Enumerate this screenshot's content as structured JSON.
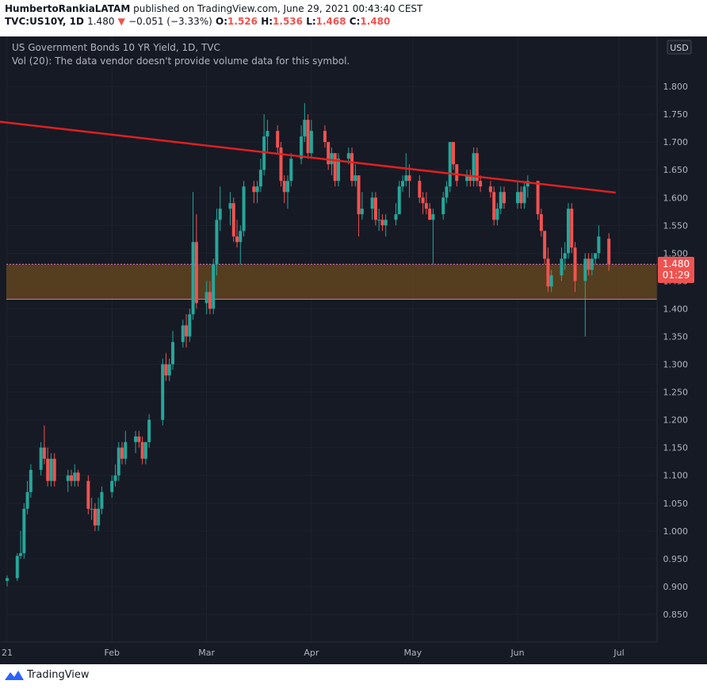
{
  "header": {
    "author": "HumbertoRankiaLATAM",
    "published": "published on TradingView.com, June 29, 2021 00:43:40 CEST",
    "symbol": "TVC:US10Y, 1D",
    "last": "1.480",
    "change": "−0.051 (−3.33%)",
    "o_label": "O:",
    "o_val": "1.526",
    "h_label": "H:",
    "h_val": "1.536",
    "l_label": "L:",
    "l_val": "1.468",
    "c_label": "C:",
    "c_val": "1.480"
  },
  "legend": {
    "title": "US Government Bonds 10 YR Yield, 1D, TVC",
    "vol": "Vol (20): The data vendor doesn't provide volume data for this symbol."
  },
  "currency": "USD",
  "price_tag": {
    "price": "1.480",
    "countdown": "01:29"
  },
  "footer": {
    "brand": "TradingView"
  },
  "colors": {
    "up": "#26a69a",
    "down": "#ef5350",
    "background": "#161a25",
    "trendline": "#e02020",
    "zone": "#6b4a1e",
    "text": "#b2b5be"
  },
  "chart_data": {
    "type": "candlestick",
    "title": "US Government Bonds 10 YR Yield, 1D, TVC",
    "ylim": [
      0.8,
      1.89
    ],
    "y_ticks": [
      "0.850",
      "0.900",
      "0.950",
      "1.000",
      "1.050",
      "1.100",
      "1.150",
      "1.200",
      "1.250",
      "1.300",
      "1.350",
      "1.400",
      "1.450",
      "1.500",
      "1.550",
      "1.600",
      "1.650",
      "1.700",
      "1.750",
      "1.800"
    ],
    "x_labels": [
      {
        "label": "21",
        "date": "2021-01-01"
      },
      {
        "label": "Feb",
        "date": "2021-02-01"
      },
      {
        "label": "Mar",
        "date": "2021-03-01"
      },
      {
        "label": "Apr",
        "date": "2021-04-01"
      },
      {
        "label": "May",
        "date": "2021-05-01"
      },
      {
        "label": "Jun",
        "date": "2021-06-01"
      },
      {
        "label": "Jul",
        "date": "2021-07-01"
      }
    ],
    "candles": [
      {
        "d": "2021-01-01",
        "o": 0.91,
        "h": 0.92,
        "l": 0.9,
        "c": 0.915
      },
      {
        "d": "2021-01-04",
        "o": 0.915,
        "h": 0.96,
        "l": 0.91,
        "c": 0.955
      },
      {
        "d": "2021-01-05",
        "o": 0.955,
        "h": 1.0,
        "l": 0.95,
        "c": 0.96
      },
      {
        "d": "2021-01-06",
        "o": 0.96,
        "h": 1.05,
        "l": 0.95,
        "c": 1.04
      },
      {
        "d": "2021-01-07",
        "o": 1.04,
        "h": 1.09,
        "l": 1.03,
        "c": 1.07
      },
      {
        "d": "2021-01-08",
        "o": 1.07,
        "h": 1.12,
        "l": 1.06,
        "c": 1.11
      },
      {
        "d": "2021-01-11",
        "o": 1.11,
        "h": 1.16,
        "l": 1.1,
        "c": 1.15
      },
      {
        "d": "2021-01-12",
        "o": 1.15,
        "h": 1.19,
        "l": 1.12,
        "c": 1.13
      },
      {
        "d": "2021-01-13",
        "o": 1.13,
        "h": 1.15,
        "l": 1.08,
        "c": 1.09
      },
      {
        "d": "2021-01-14",
        "o": 1.09,
        "h": 1.14,
        "l": 1.08,
        "c": 1.13
      },
      {
        "d": "2021-01-15",
        "o": 1.13,
        "h": 1.14,
        "l": 1.08,
        "c": 1.09
      },
      {
        "d": "2021-01-19",
        "o": 1.09,
        "h": 1.11,
        "l": 1.07,
        "c": 1.1
      },
      {
        "d": "2021-01-20",
        "o": 1.1,
        "h": 1.11,
        "l": 1.08,
        "c": 1.09
      },
      {
        "d": "2021-01-21",
        "o": 1.09,
        "h": 1.12,
        "l": 1.08,
        "c": 1.105
      },
      {
        "d": "2021-01-22",
        "o": 1.105,
        "h": 1.11,
        "l": 1.08,
        "c": 1.09
      },
      {
        "d": "2021-01-25",
        "o": 1.09,
        "h": 1.1,
        "l": 1.03,
        "c": 1.04
      },
      {
        "d": "2021-01-26",
        "o": 1.04,
        "h": 1.06,
        "l": 1.02,
        "c": 1.04
      },
      {
        "d": "2021-01-27",
        "o": 1.04,
        "h": 1.05,
        "l": 1.0,
        "c": 1.01
      },
      {
        "d": "2021-01-28",
        "o": 1.01,
        "h": 1.06,
        "l": 1.0,
        "c": 1.04
      },
      {
        "d": "2021-01-29",
        "o": 1.04,
        "h": 1.08,
        "l": 1.03,
        "c": 1.07
      },
      {
        "d": "2021-02-01",
        "o": 1.07,
        "h": 1.1,
        "l": 1.06,
        "c": 1.09
      },
      {
        "d": "2021-02-02",
        "o": 1.09,
        "h": 1.12,
        "l": 1.08,
        "c": 1.1
      },
      {
        "d": "2021-02-03",
        "o": 1.1,
        "h": 1.16,
        "l": 1.09,
        "c": 1.15
      },
      {
        "d": "2021-02-04",
        "o": 1.15,
        "h": 1.16,
        "l": 1.12,
        "c": 1.13
      },
      {
        "d": "2021-02-05",
        "o": 1.13,
        "h": 1.18,
        "l": 1.12,
        "c": 1.16
      },
      {
        "d": "2021-02-08",
        "o": 1.16,
        "h": 1.18,
        "l": 1.14,
        "c": 1.17
      },
      {
        "d": "2021-02-09",
        "o": 1.17,
        "h": 1.18,
        "l": 1.15,
        "c": 1.16
      },
      {
        "d": "2021-02-10",
        "o": 1.16,
        "h": 1.17,
        "l": 1.12,
        "c": 1.13
      },
      {
        "d": "2021-02-11",
        "o": 1.13,
        "h": 1.16,
        "l": 1.12,
        "c": 1.16
      },
      {
        "d": "2021-02-12",
        "o": 1.16,
        "h": 1.21,
        "l": 1.15,
        "c": 1.2
      },
      {
        "d": "2021-02-16",
        "o": 1.2,
        "h": 1.31,
        "l": 1.19,
        "c": 1.3
      },
      {
        "d": "2021-02-17",
        "o": 1.3,
        "h": 1.32,
        "l": 1.27,
        "c": 1.28
      },
      {
        "d": "2021-02-18",
        "o": 1.28,
        "h": 1.31,
        "l": 1.27,
        "c": 1.3
      },
      {
        "d": "2021-02-19",
        "o": 1.3,
        "h": 1.36,
        "l": 1.29,
        "c": 1.34
      },
      {
        "d": "2021-02-22",
        "o": 1.34,
        "h": 1.38,
        "l": 1.33,
        "c": 1.37
      },
      {
        "d": "2021-02-23",
        "o": 1.37,
        "h": 1.39,
        "l": 1.33,
        "c": 1.35
      },
      {
        "d": "2021-02-24",
        "o": 1.35,
        "h": 1.4,
        "l": 1.34,
        "c": 1.39
      },
      {
        "d": "2021-02-25",
        "o": 1.39,
        "h": 1.61,
        "l": 1.38,
        "c": 1.52
      },
      {
        "d": "2021-02-26",
        "o": 1.52,
        "h": 1.57,
        "l": 1.4,
        "c": 1.41
      },
      {
        "d": "2021-03-01",
        "o": 1.41,
        "h": 1.45,
        "l": 1.39,
        "c": 1.43
      },
      {
        "d": "2021-03-02",
        "o": 1.43,
        "h": 1.45,
        "l": 1.39,
        "c": 1.4
      },
      {
        "d": "2021-03-03",
        "o": 1.4,
        "h": 1.49,
        "l": 1.39,
        "c": 1.48
      },
      {
        "d": "2021-03-04",
        "o": 1.48,
        "h": 1.58,
        "l": 1.46,
        "c": 1.56
      },
      {
        "d": "2021-03-05",
        "o": 1.56,
        "h": 1.62,
        "l": 1.54,
        "c": 1.58
      },
      {
        "d": "2021-03-08",
        "o": 1.58,
        "h": 1.61,
        "l": 1.55,
        "c": 1.59
      },
      {
        "d": "2021-03-09",
        "o": 1.59,
        "h": 1.6,
        "l": 1.52,
        "c": 1.53
      },
      {
        "d": "2021-03-10",
        "o": 1.53,
        "h": 1.56,
        "l": 1.51,
        "c": 1.52
      },
      {
        "d": "2021-03-11",
        "o": 1.52,
        "h": 1.55,
        "l": 1.48,
        "c": 1.54
      },
      {
        "d": "2021-03-12",
        "o": 1.54,
        "h": 1.63,
        "l": 1.53,
        "c": 1.62
      },
      {
        "d": "2021-03-15",
        "o": 1.62,
        "h": 1.63,
        "l": 1.59,
        "c": 1.61
      },
      {
        "d": "2021-03-16",
        "o": 1.61,
        "h": 1.63,
        "l": 1.59,
        "c": 1.62
      },
      {
        "d": "2021-03-17",
        "o": 1.62,
        "h": 1.67,
        "l": 1.61,
        "c": 1.65
      },
      {
        "d": "2021-03-18",
        "o": 1.65,
        "h": 1.75,
        "l": 1.64,
        "c": 1.71
      },
      {
        "d": "2021-03-19",
        "o": 1.71,
        "h": 1.74,
        "l": 1.68,
        "c": 1.72
      },
      {
        "d": "2021-03-22",
        "o": 1.72,
        "h": 1.73,
        "l": 1.68,
        "c": 1.69
      },
      {
        "d": "2021-03-23",
        "o": 1.69,
        "h": 1.7,
        "l": 1.62,
        "c": 1.63
      },
      {
        "d": "2021-03-24",
        "o": 1.63,
        "h": 1.64,
        "l": 1.59,
        "c": 1.61
      },
      {
        "d": "2021-03-25",
        "o": 1.61,
        "h": 1.64,
        "l": 1.58,
        "c": 1.63
      },
      {
        "d": "2021-03-26",
        "o": 1.63,
        "h": 1.68,
        "l": 1.62,
        "c": 1.67
      },
      {
        "d": "2021-03-29",
        "o": 1.67,
        "h": 1.73,
        "l": 1.66,
        "c": 1.71
      },
      {
        "d": "2021-03-30",
        "o": 1.71,
        "h": 1.77,
        "l": 1.7,
        "c": 1.74
      },
      {
        "d": "2021-03-31",
        "o": 1.74,
        "h": 1.75,
        "l": 1.67,
        "c": 1.68
      },
      {
        "d": "2021-04-01",
        "o": 1.68,
        "h": 1.74,
        "l": 1.67,
        "c": 1.72
      },
      {
        "d": "2021-04-05",
        "o": 1.72,
        "h": 1.73,
        "l": 1.69,
        "c": 1.7
      },
      {
        "d": "2021-04-06",
        "o": 1.7,
        "h": 1.7,
        "l": 1.65,
        "c": 1.66
      },
      {
        "d": "2021-04-07",
        "o": 1.66,
        "h": 1.69,
        "l": 1.64,
        "c": 1.68
      },
      {
        "d": "2021-04-08",
        "o": 1.68,
        "h": 1.68,
        "l": 1.62,
        "c": 1.63
      },
      {
        "d": "2021-04-09",
        "o": 1.63,
        "h": 1.68,
        "l": 1.62,
        "c": 1.67
      },
      {
        "d": "2021-04-12",
        "o": 1.67,
        "h": 1.69,
        "l": 1.66,
        "c": 1.68
      },
      {
        "d": "2021-04-13",
        "o": 1.68,
        "h": 1.69,
        "l": 1.62,
        "c": 1.63
      },
      {
        "d": "2021-04-14",
        "o": 1.63,
        "h": 1.66,
        "l": 1.62,
        "c": 1.64
      },
      {
        "d": "2021-04-15",
        "o": 1.64,
        "h": 1.64,
        "l": 1.53,
        "c": 1.57
      },
      {
        "d": "2021-04-16",
        "o": 1.57,
        "h": 1.61,
        "l": 1.56,
        "c": 1.58
      },
      {
        "d": "2021-04-19",
        "o": 1.58,
        "h": 1.61,
        "l": 1.56,
        "c": 1.6
      },
      {
        "d": "2021-04-20",
        "o": 1.6,
        "h": 1.61,
        "l": 1.55,
        "c": 1.56
      },
      {
        "d": "2021-04-21",
        "o": 1.56,
        "h": 1.58,
        "l": 1.54,
        "c": 1.56
      },
      {
        "d": "2021-04-22",
        "o": 1.56,
        "h": 1.57,
        "l": 1.54,
        "c": 1.55
      },
      {
        "d": "2021-04-23",
        "o": 1.55,
        "h": 1.57,
        "l": 1.53,
        "c": 1.56
      },
      {
        "d": "2021-04-26",
        "o": 1.56,
        "h": 1.59,
        "l": 1.55,
        "c": 1.57
      },
      {
        "d": "2021-04-27",
        "o": 1.57,
        "h": 1.63,
        "l": 1.57,
        "c": 1.62
      },
      {
        "d": "2021-04-28",
        "o": 1.62,
        "h": 1.64,
        "l": 1.61,
        "c": 1.63
      },
      {
        "d": "2021-04-29",
        "o": 1.63,
        "h": 1.68,
        "l": 1.62,
        "c": 1.64
      },
      {
        "d": "2021-04-30",
        "o": 1.64,
        "h": 1.66,
        "l": 1.6,
        "c": 1.63
      },
      {
        "d": "2021-05-03",
        "o": 1.63,
        "h": 1.64,
        "l": 1.59,
        "c": 1.6
      },
      {
        "d": "2021-05-04",
        "o": 1.6,
        "h": 1.61,
        "l": 1.57,
        "c": 1.59
      },
      {
        "d": "2021-05-05",
        "o": 1.59,
        "h": 1.61,
        "l": 1.57,
        "c": 1.58
      },
      {
        "d": "2021-05-06",
        "o": 1.58,
        "h": 1.59,
        "l": 1.56,
        "c": 1.56
      },
      {
        "d": "2021-05-07",
        "o": 1.56,
        "h": 1.58,
        "l": 1.48,
        "c": 1.57
      },
      {
        "d": "2021-05-10",
        "o": 1.57,
        "h": 1.61,
        "l": 1.56,
        "c": 1.6
      },
      {
        "d": "2021-05-11",
        "o": 1.6,
        "h": 1.63,
        "l": 1.59,
        "c": 1.62
      },
      {
        "d": "2021-05-12",
        "o": 1.62,
        "h": 1.7,
        "l": 1.61,
        "c": 1.7
      },
      {
        "d": "2021-05-13",
        "o": 1.7,
        "h": 1.7,
        "l": 1.65,
        "c": 1.66
      },
      {
        "d": "2021-05-14",
        "o": 1.66,
        "h": 1.66,
        "l": 1.62,
        "c": 1.63
      },
      {
        "d": "2021-05-17",
        "o": 1.63,
        "h": 1.65,
        "l": 1.62,
        "c": 1.64
      },
      {
        "d": "2021-05-18",
        "o": 1.64,
        "h": 1.65,
        "l": 1.62,
        "c": 1.63
      },
      {
        "d": "2021-05-19",
        "o": 1.63,
        "h": 1.69,
        "l": 1.62,
        "c": 1.68
      },
      {
        "d": "2021-05-20",
        "o": 1.68,
        "h": 1.69,
        "l": 1.62,
        "c": 1.63
      },
      {
        "d": "2021-05-21",
        "o": 1.63,
        "h": 1.64,
        "l": 1.61,
        "c": 1.62
      },
      {
        "d": "2021-05-24",
        "o": 1.62,
        "h": 1.63,
        "l": 1.6,
        "c": 1.61
      },
      {
        "d": "2021-05-25",
        "o": 1.61,
        "h": 1.62,
        "l": 1.55,
        "c": 1.56
      },
      {
        "d": "2021-05-26",
        "o": 1.56,
        "h": 1.59,
        "l": 1.55,
        "c": 1.58
      },
      {
        "d": "2021-05-27",
        "o": 1.58,
        "h": 1.62,
        "l": 1.57,
        "c": 1.61
      },
      {
        "d": "2021-05-28",
        "o": 1.61,
        "h": 1.62,
        "l": 1.58,
        "c": 1.59
      },
      {
        "d": "2021-06-01",
        "o": 1.59,
        "h": 1.63,
        "l": 1.58,
        "c": 1.61
      },
      {
        "d": "2021-06-02",
        "o": 1.61,
        "h": 1.62,
        "l": 1.58,
        "c": 1.59
      },
      {
        "d": "2021-06-03",
        "o": 1.59,
        "h": 1.63,
        "l": 1.58,
        "c": 1.62
      },
      {
        "d": "2021-06-04",
        "o": 1.62,
        "h": 1.64,
        "l": 1.6,
        "c": 1.63
      },
      {
        "d": "2021-06-07",
        "o": 1.63,
        "h": 1.63,
        "l": 1.56,
        "c": 1.57
      },
      {
        "d": "2021-06-08",
        "o": 1.57,
        "h": 1.58,
        "l": 1.53,
        "c": 1.54
      },
      {
        "d": "2021-06-09",
        "o": 1.54,
        "h": 1.54,
        "l": 1.48,
        "c": 1.49
      },
      {
        "d": "2021-06-10",
        "o": 1.49,
        "h": 1.51,
        "l": 1.43,
        "c": 1.44
      },
      {
        "d": "2021-06-11",
        "o": 1.44,
        "h": 1.47,
        "l": 1.43,
        "c": 1.46
      },
      {
        "d": "2021-06-14",
        "o": 1.46,
        "h": 1.51,
        "l": 1.45,
        "c": 1.49
      },
      {
        "d": "2021-06-15",
        "o": 1.49,
        "h": 1.52,
        "l": 1.47,
        "c": 1.5
      },
      {
        "d": "2021-06-16",
        "o": 1.5,
        "h": 1.59,
        "l": 1.49,
        "c": 1.58
      },
      {
        "d": "2021-06-17",
        "o": 1.58,
        "h": 1.59,
        "l": 1.5,
        "c": 1.51
      },
      {
        "d": "2021-06-18",
        "o": 1.51,
        "h": 1.52,
        "l": 1.43,
        "c": 1.45
      },
      {
        "d": "2021-06-21",
        "o": 1.45,
        "h": 1.5,
        "l": 1.35,
        "c": 1.49
      },
      {
        "d": "2021-06-22",
        "o": 1.49,
        "h": 1.5,
        "l": 1.46,
        "c": 1.47
      },
      {
        "d": "2021-06-23",
        "o": 1.47,
        "h": 1.5,
        "l": 1.46,
        "c": 1.49
      },
      {
        "d": "2021-06-24",
        "o": 1.49,
        "h": 1.5,
        "l": 1.48,
        "c": 1.5
      },
      {
        "d": "2021-06-25",
        "o": 1.5,
        "h": 1.55,
        "l": 1.49,
        "c": 1.53
      },
      {
        "d": "2021-06-28",
        "o": 1.526,
        "h": 1.536,
        "l": 1.468,
        "c": 1.48
      }
    ],
    "trendline": {
      "start": {
        "date": "2020-12-29",
        "value": 1.737
      },
      "end": {
        "date": "2021-06-30",
        "value": 1.609
      }
    },
    "support_zone": {
      "low": 1.417,
      "high": 1.48
    },
    "grid": true
  }
}
